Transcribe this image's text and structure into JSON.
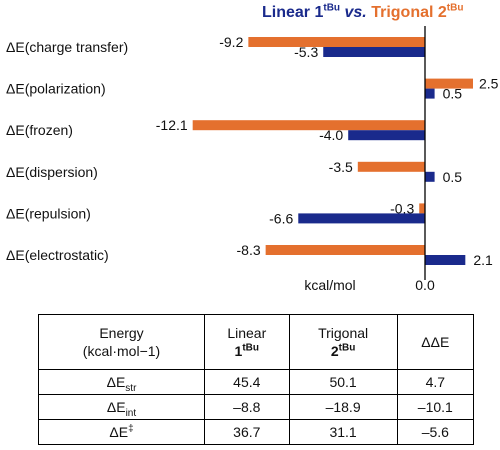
{
  "title": {
    "linear_word": "Linear",
    "linear_num": "1",
    "linear_sup": "tBu",
    "vs": "vs.",
    "trig_word": "Trigonal",
    "trig_num": "2",
    "trig_sup": "tBu"
  },
  "colors": {
    "linear": "#1a2a8c",
    "trigonal": "#e4702e"
  },
  "chart_data": {
    "type": "bar",
    "orientation": "horizontal",
    "categories": [
      "ΔE(charge transfer)",
      "ΔE(polarization)",
      "ΔE(frozen)",
      "ΔE(dispersion)",
      "ΔE(repulsion)",
      "ΔE(electrostatic)"
    ],
    "series": [
      {
        "name": "Trigonal 2tBu",
        "color": "#e4702e",
        "values": [
          -9.2,
          2.5,
          -12.1,
          -3.5,
          -0.3,
          -8.3
        ]
      },
      {
        "name": "Linear 1tBu",
        "color": "#1a2a8c",
        "values": [
          -5.3,
          0.5,
          -4.0,
          0.5,
          -6.6,
          2.1
        ]
      }
    ],
    "data_labels": {
      "trigonal": [
        "-9.2",
        "2.5",
        "-12.1",
        "-3.5",
        "-0.3",
        "-8.3"
      ],
      "linear": [
        "-5.3",
        "0.5",
        "-4.0",
        "0.5",
        "-6.6",
        "2.1"
      ]
    },
    "xlabel": "kcal/mol",
    "zero_tick": "0.0",
    "xlim": [
      -12.6,
      2.9
    ],
    "legend": "title (top-right)",
    "grid": false
  },
  "table": {
    "headers": {
      "energy_line1": "Energy",
      "energy_line2": "(kcal·mol−1)",
      "linear_word": "Linear",
      "linear_num": "1",
      "linear_sup": "tBu",
      "trig_word": "Trigonal",
      "trig_num": "2",
      "trig_sup": "tBu",
      "ddE": "ΔΔE"
    },
    "rows": [
      {
        "label": "ΔE",
        "sub": "str",
        "sup": "",
        "linear": "45.4",
        "trigonal": "50.1",
        "dd": "4.7"
      },
      {
        "label": "ΔE",
        "sub": "int",
        "sup": "",
        "linear": "–8.8",
        "trigonal": "–18.9",
        "dd": "–10.1"
      },
      {
        "label": "ΔE",
        "sub": "",
        "sup": "‡",
        "linear": "36.7",
        "trigonal": "31.1",
        "dd": "–5.6"
      }
    ]
  }
}
